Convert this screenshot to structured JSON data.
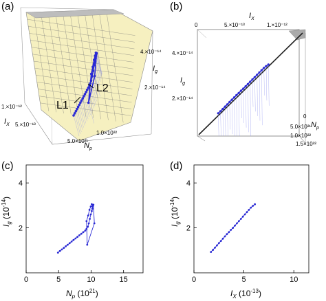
{
  "panel_labels": [
    "(a)",
    "(b)",
    "(c)",
    "(d)"
  ],
  "chart_data": [
    {
      "panel": "(a)",
      "type": "scatter",
      "projection": "3d",
      "axes": {
        "x": "I_X",
        "y": "N_p",
        "z": "I_g"
      },
      "x_ticks": [
        "5.×10⁻¹³",
        "1.×10⁻¹²"
      ],
      "y_ticks": [
        "5.0×10²¹",
        "1.0×10²²"
      ],
      "z_ticks": [
        "2.×10⁻¹⁴",
        "4.×10⁻¹⁴"
      ],
      "annotations": [
        "L1",
        "L2"
      ],
      "surface_color": "#f6f0c0"
    },
    {
      "panel": "(b)",
      "type": "scatter",
      "projection": "3d",
      "axes": {
        "x": "I_X",
        "y": "N_p",
        "z": "I_g"
      },
      "x_ticks": [
        "0",
        "5.×10⁻¹³",
        "1.×10⁻¹²"
      ],
      "y_ticks": [
        "0",
        "5.0×10²¹",
        "1.0×10²²",
        "1.5×10²²"
      ],
      "z_ticks": [
        "2.×10⁻¹⁴",
        "4.×10⁻¹⁴"
      ]
    },
    {
      "panel": "(c)",
      "type": "line",
      "xlabel": "N_p (10^21)",
      "ylabel": "I_g (10^-14)",
      "xlim": [
        0,
        18
      ],
      "ylim": [
        0,
        4.8
      ],
      "xticks": [
        0,
        5,
        10,
        15
      ],
      "yticks": [
        2,
        4
      ],
      "tick_labels_x": [
        "0",
        "5",
        "10",
        "15"
      ],
      "tick_labels_y": [
        "2",
        "4"
      ],
      "series": [
        {
          "x": [
            4.9,
            5.2,
            5.5,
            5.8,
            6.1,
            6.4,
            6.7,
            7.0,
            7.3,
            7.6,
            7.9,
            8.2,
            8.5,
            8.8,
            9.1,
            9.3,
            9.5,
            9.65,
            9.8,
            9.95,
            10.1,
            10.2,
            10.25,
            10.3,
            10.35,
            10.5,
            9.4,
            9.3,
            9.55,
            9.75,
            9.95,
            10.1
          ],
          "y": [
            0.9,
            0.97,
            1.04,
            1.11,
            1.18,
            1.25,
            1.32,
            1.39,
            1.46,
            1.53,
            1.6,
            1.67,
            1.74,
            1.81,
            1.88,
            1.95,
            2.05,
            2.2,
            2.4,
            2.6,
            2.75,
            2.85,
            2.95,
            3.0,
            3.03,
            2.2,
            1.25,
            2.3,
            2.55,
            2.8,
            2.95,
            3.05
          ]
        }
      ]
    },
    {
      "panel": "(d)",
      "type": "line",
      "xlabel": "I_X (10^-13)",
      "ylabel": "I_g (10^-14)",
      "xlim": [
        0,
        11.5
      ],
      "ylim": [
        0,
        4.8
      ],
      "xticks": [
        0,
        5,
        10
      ],
      "yticks": [
        2,
        4
      ],
      "tick_labels_x": [
        "0",
        "5",
        "10"
      ],
      "tick_labels_y": [
        "2",
        "4"
      ],
      "series": [
        {
          "x": [
            1.7,
            1.9,
            2.1,
            2.3,
            2.5,
            2.7,
            2.9,
            3.1,
            3.3,
            3.5,
            3.7,
            3.9,
            4.1,
            4.3,
            4.5,
            4.7,
            4.9,
            5.1,
            5.3,
            5.5,
            5.7,
            5.9,
            6.1
          ],
          "y": [
            0.93,
            1.02,
            1.12,
            1.22,
            1.32,
            1.42,
            1.52,
            1.62,
            1.72,
            1.81,
            1.91,
            2.0,
            2.1,
            2.2,
            2.3,
            2.4,
            2.5,
            2.6,
            2.7,
            2.8,
            2.9,
            2.98,
            3.05
          ]
        }
      ]
    }
  ]
}
